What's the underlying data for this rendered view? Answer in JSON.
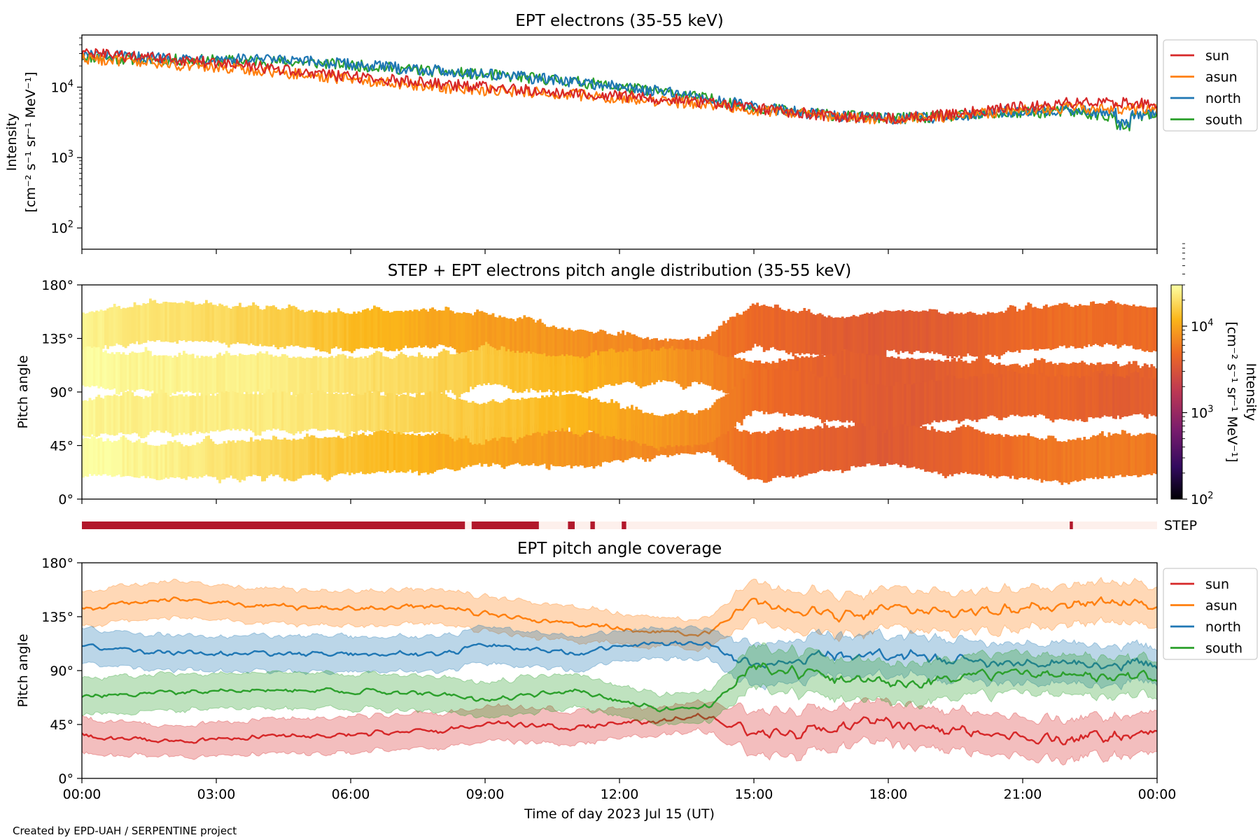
{
  "figure": {
    "credit": "Created by EPD-UAH / SERPENTINE project",
    "xlabel": "Time of day 2023 Jul 15 (UT)",
    "xticks": [
      "00:00",
      "03:00",
      "06:00",
      "09:00",
      "12:00",
      "15:00",
      "18:00",
      "21:00",
      "00:00"
    ],
    "colors": {
      "sun": "#d62728",
      "asun": "#ff7f0e",
      "north": "#1f77b4",
      "south": "#2ca02c",
      "step_on": "#b2182b",
      "step_off": "#fdf0ec"
    }
  },
  "chart_data": [
    {
      "type": "line",
      "title": "EPT electrons (35-55 keV)",
      "ylabel_line1": "Intensity",
      "ylabel_line2": "[cm⁻² s⁻¹ sr⁻¹ MeV⁻¹]",
      "yscale": "log",
      "ylim": [
        50,
        55000
      ],
      "yticks": [
        {
          "value": 100,
          "base": "10",
          "exp": "2"
        },
        {
          "value": 1000,
          "base": "10",
          "exp": "3"
        },
        {
          "value": 10000,
          "base": "10",
          "exp": "4"
        }
      ],
      "xlim_hours": [
        0,
        24
      ],
      "legend_position": "outside-right-top",
      "series": [
        {
          "name": "sun",
          "x": [
            0,
            1,
            2,
            3,
            4,
            5,
            6,
            7,
            8,
            9,
            10,
            11,
            12,
            13,
            14,
            15,
            16,
            17,
            18,
            19,
            20,
            21,
            22,
            23,
            24
          ],
          "y": [
            31000,
            27000,
            25000,
            22000,
            19000,
            16000,
            14000,
            12500,
            11000,
            10000,
            9000,
            8200,
            7500,
            6800,
            6000,
            5000,
            4300,
            3800,
            3600,
            3900,
            4500,
            5300,
            5900,
            6000,
            5800
          ]
        },
        {
          "name": "asun",
          "x": [
            0,
            1,
            2,
            3,
            4,
            5,
            6,
            7,
            8,
            9,
            10,
            11,
            12,
            13,
            14,
            15,
            16,
            17,
            18,
            19,
            20,
            21,
            22,
            23,
            24
          ],
          "y": [
            26000,
            23000,
            21000,
            19000,
            17000,
            15000,
            13000,
            11500,
            10000,
            9000,
            8500,
            7800,
            7000,
            6300,
            5700,
            4800,
            4200,
            3700,
            3500,
            3700,
            4200,
            4800,
            5100,
            5000,
            4900
          ]
        },
        {
          "name": "north",
          "x": [
            0,
            1,
            2,
            3,
            4,
            5,
            6,
            7,
            8,
            9,
            10,
            11,
            12,
            13,
            14,
            15,
            16,
            17,
            18,
            19,
            20,
            21,
            22,
            23,
            24
          ],
          "y": [
            29000,
            27000,
            26000,
            25500,
            24500,
            23000,
            21000,
            19000,
            17000,
            15500,
            13500,
            12000,
            10000,
            8500,
            6800,
            5200,
            4400,
            3900,
            3600,
            3700,
            4200,
            4600,
            4800,
            4200,
            4100
          ]
        },
        {
          "name": "south",
          "x": [
            0,
            1,
            2,
            3,
            4,
            5,
            6,
            7,
            8,
            9,
            10,
            11,
            12,
            13,
            14,
            15,
            16,
            17,
            18,
            19,
            20,
            21,
            22,
            23,
            24
          ],
          "y": [
            27000,
            25000,
            24500,
            24000,
            23500,
            22500,
            20500,
            18500,
            16500,
            15000,
            13500,
            12000,
            10000,
            8500,
            6800,
            5200,
            4400,
            3900,
            3600,
            3700,
            4000,
            4300,
            4500,
            3800,
            4000
          ]
        }
      ]
    },
    {
      "type": "heatmap",
      "title": "STEP + EPT electrons pitch angle distribution (35-55 keV)",
      "ylabel": "Pitch angle",
      "ylim": [
        0,
        180
      ],
      "yticks": [
        "0°",
        "45°",
        "90°",
        "135°",
        "180°"
      ],
      "ytick_values": [
        0,
        45,
        90,
        135,
        180
      ],
      "colorbar": {
        "label_line1": "Intensity",
        "label_line2": "[cm⁻² s⁻¹ sr⁻¹ MeV⁻¹]",
        "scale": "log",
        "range": [
          100,
          30000
        ],
        "ticks": [
          {
            "value": 100,
            "base": "10",
            "exp": "2"
          },
          {
            "value": 1000,
            "base": "10",
            "exp": "3"
          },
          {
            "value": 10000,
            "base": "10",
            "exp": "4"
          }
        ]
      },
      "notes": "bands follow the EPT telescope coverage shown in the bottom panel; colour = intensity"
    },
    {
      "type": "bar",
      "label": "STEP",
      "description": "STEP data availability strip",
      "segments_on_hours": [
        [
          0,
          8.55
        ],
        [
          8.7,
          10.2
        ],
        [
          10.85,
          11.0
        ],
        [
          11.35,
          11.45
        ],
        [
          12.05,
          12.15
        ],
        [
          22.05,
          22.12
        ]
      ]
    },
    {
      "type": "area",
      "title": "EPT pitch angle coverage",
      "ylabel": "Pitch angle",
      "ylim": [
        0,
        180
      ],
      "yticks": [
        "0°",
        "45°",
        "90°",
        "135°",
        "180°"
      ],
      "ytick_values": [
        0,
        45,
        90,
        135,
        180
      ],
      "legend_position": "outside-right-top",
      "series": [
        {
          "name": "sun",
          "x": [
            0,
            1,
            2,
            3,
            4,
            5,
            6,
            7,
            8,
            9,
            10,
            11,
            12,
            13,
            14,
            15,
            16,
            17,
            18,
            19,
            20,
            21,
            22,
            23,
            24
          ],
          "y": [
            36,
            33,
            31,
            33,
            35,
            36,
            37,
            38,
            40,
            45,
            44,
            42,
            46,
            49,
            52,
            36,
            40,
            44,
            47,
            40,
            38,
            35,
            32,
            36,
            38
          ],
          "band": [
            14,
            13,
            12,
            13,
            14,
            14,
            14,
            14,
            14,
            14,
            14,
            13,
            12,
            11,
            12,
            18,
            18,
            16,
            16,
            16,
            16,
            16,
            16,
            16,
            16
          ]
        },
        {
          "name": "asun",
          "x": [
            0,
            1,
            2,
            3,
            4,
            5,
            6,
            7,
            8,
            9,
            10,
            11,
            12,
            13,
            14,
            15,
            16,
            17,
            18,
            19,
            20,
            21,
            22,
            23,
            24
          ],
          "y": [
            141,
            146,
            150,
            147,
            144,
            143,
            142,
            143,
            144,
            138,
            133,
            128,
            125,
            122,
            121,
            147,
            140,
            135,
            142,
            140,
            138,
            142,
            145,
            148,
            144
          ],
          "band": [
            14,
            14,
            15,
            14,
            14,
            14,
            14,
            14,
            14,
            14,
            14,
            13,
            12,
            11,
            12,
            16,
            16,
            16,
            16,
            16,
            16,
            16,
            16,
            16,
            16
          ]
        },
        {
          "name": "north",
          "x": [
            0,
            1,
            2,
            3,
            4,
            5,
            6,
            7,
            8,
            9,
            10,
            11,
            12,
            13,
            14,
            15,
            16,
            17,
            18,
            19,
            20,
            21,
            22,
            23,
            24
          ],
          "y": [
            110,
            107,
            105,
            104,
            104,
            104,
            104,
            104,
            104,
            112,
            108,
            104,
            110,
            113,
            112,
            95,
            100,
            105,
            103,
            100,
            98,
            95,
            97,
            96,
            95
          ],
          "band": [
            14,
            14,
            14,
            14,
            14,
            14,
            14,
            14,
            14,
            14,
            14,
            13,
            12,
            12,
            12,
            17,
            17,
            16,
            16,
            16,
            16,
            16,
            16,
            16,
            14
          ]
        },
        {
          "name": "south",
          "x": [
            0,
            1,
            2,
            3,
            4,
            5,
            6,
            7,
            8,
            9,
            10,
            11,
            12,
            13,
            14,
            15,
            16,
            17,
            18,
            19,
            20,
            21,
            22,
            23,
            24
          ],
          "y": [
            68,
            70,
            72,
            73,
            73,
            73,
            73,
            72,
            71,
            65,
            70,
            74,
            64,
            57,
            60,
            93,
            88,
            82,
            78,
            82,
            85,
            88,
            86,
            86,
            87
          ],
          "band": [
            14,
            14,
            14,
            14,
            14,
            14,
            14,
            14,
            14,
            14,
            14,
            13,
            12,
            12,
            12,
            17,
            17,
            16,
            16,
            16,
            16,
            16,
            16,
            16,
            14
          ]
        }
      ]
    }
  ]
}
